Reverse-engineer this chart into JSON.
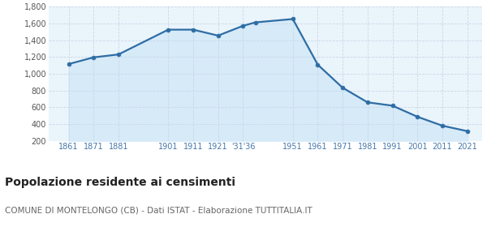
{
  "years": [
    1861,
    1871,
    1881,
    1901,
    1911,
    1921,
    1931,
    1936,
    1951,
    1961,
    1971,
    1981,
    1991,
    2001,
    2011,
    2021
  ],
  "population": [
    1116,
    1196,
    1231,
    1527,
    1527,
    1456,
    1573,
    1614,
    1654,
    1109,
    833,
    659,
    619,
    487,
    380,
    315
  ],
  "line_color": "#2e6da4",
  "fill_color": "#d6eaf8",
  "marker_color": "#2e6da4",
  "grid_color": "#c8d8e8",
  "background_color": "#eaf4fb",
  "title": "Popolazione residente ai censimenti",
  "subtitle": "COMUNE DI MONTELONGO (CB) - Dati ISTAT - Elaborazione TUTTITALIA.IT",
  "ylim": [
    200,
    1800
  ],
  "yticks": [
    200,
    400,
    600,
    800,
    1000,
    1200,
    1400,
    1600,
    1800
  ],
  "xtick_positions": [
    1861,
    1871,
    1881,
    1901,
    1911,
    1921,
    1931,
    1951,
    1961,
    1971,
    1981,
    1991,
    2001,
    2011,
    2021
  ],
  "xtick_labels": [
    "1861",
    "1871",
    "1881",
    "1901",
    "1911",
    "1921",
    "'31'36",
    "1951",
    "1961",
    "1971",
    "1981",
    "1991",
    "2001",
    "2011",
    "2021"
  ],
  "xlim": [
    1853,
    2027
  ],
  "title_fontsize": 10,
  "subtitle_fontsize": 7.5,
  "tick_fontsize": 7,
  "line_width": 1.6,
  "marker_size": 3.5
}
